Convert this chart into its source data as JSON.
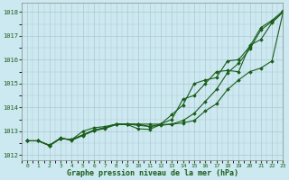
{
  "title": "Graphe pression niveau de la mer (hPa)",
  "xlabel_ticks": [
    0,
    1,
    2,
    3,
    4,
    5,
    6,
    7,
    8,
    9,
    10,
    11,
    12,
    13,
    14,
    15,
    16,
    17,
    18,
    19,
    20,
    21,
    22,
    23
  ],
  "ylim": [
    1011.8,
    1018.4
  ],
  "xlim": [
    -0.5,
    23
  ],
  "yticks": [
    1012,
    1013,
    1014,
    1015,
    1016,
    1017,
    1018
  ],
  "background_color": "#cce8f0",
  "grid_color": "#b0c8d0",
  "line_color": "#1a5e1a",
  "series": [
    [
      1012.6,
      1012.6,
      1012.4,
      1012.7,
      1012.65,
      1012.85,
      1013.05,
      1013.15,
      1013.3,
      1013.3,
      1013.3,
      1013.3,
      1013.3,
      1013.7,
      1014.1,
      1015.0,
      1015.15,
      1015.25,
      1015.95,
      1016.0,
      1016.55,
      1017.35,
      1017.65,
      1018.05
    ],
    [
      1012.6,
      1012.6,
      1012.4,
      1012.7,
      1012.65,
      1012.85,
      1013.05,
      1013.15,
      1013.3,
      1013.3,
      1013.3,
      1013.2,
      1013.3,
      1013.5,
      1014.35,
      1014.5,
      1015.0,
      1015.5,
      1015.55,
      1015.5,
      1016.6,
      1016.85,
      1017.55,
      1018.0
    ],
    [
      1012.6,
      1012.6,
      1012.42,
      1012.72,
      1012.62,
      1012.82,
      1013.02,
      1013.12,
      1013.28,
      1013.28,
      1013.1,
      1013.08,
      1013.28,
      1013.3,
      1013.45,
      1013.75,
      1014.25,
      1014.75,
      1015.45,
      1015.85,
      1016.45,
      1017.25,
      1017.6,
      1018.0
    ],
    [
      1012.6,
      1012.6,
      1012.4,
      1012.7,
      1012.65,
      1013.0,
      1013.15,
      1013.2,
      1013.3,
      1013.3,
      1013.25,
      1013.2,
      1013.25,
      1013.3,
      1013.35,
      1013.45,
      1013.85,
      1014.15,
      1014.75,
      1015.15,
      1015.5,
      1015.65,
      1015.95,
      1018.0
    ]
  ]
}
